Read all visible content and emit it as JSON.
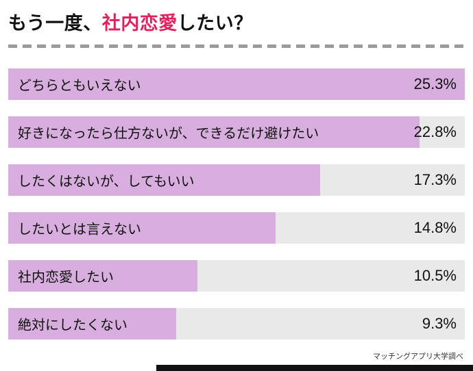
{
  "title": {
    "prefix": "もう一度、",
    "highlight": "社内恋愛",
    "suffix": "したい？"
  },
  "chart_data": {
    "type": "bar",
    "orientation": "horizontal",
    "title": "もう一度、社内恋愛したい？",
    "categories": [
      "どちらともいえない",
      "好きになったら仕方ないが、できるだけ避けたい",
      "したくはないが、してもいい",
      "したいとは言えない",
      "社内恋愛したい",
      "絶対にしたくない"
    ],
    "values": [
      25.3,
      22.8,
      17.3,
      14.8,
      10.5,
      9.3
    ],
    "value_labels": [
      "25.3%",
      "22.8%",
      "17.3%",
      "14.8%",
      "10.5%",
      "9.3%"
    ],
    "max_value": 25.3,
    "xlim": [
      0,
      25.3
    ],
    "grid": false,
    "legend": "none",
    "bar_color": "#d8aede",
    "track_color": "#e9e9e9"
  },
  "colors": {
    "title_highlight": "#e2205c",
    "bar": "#d8aede",
    "track": "#e9e9e9",
    "divider": "#9b9b9b"
  },
  "footer": {
    "source": "マッチングアプリ大学調べ"
  }
}
